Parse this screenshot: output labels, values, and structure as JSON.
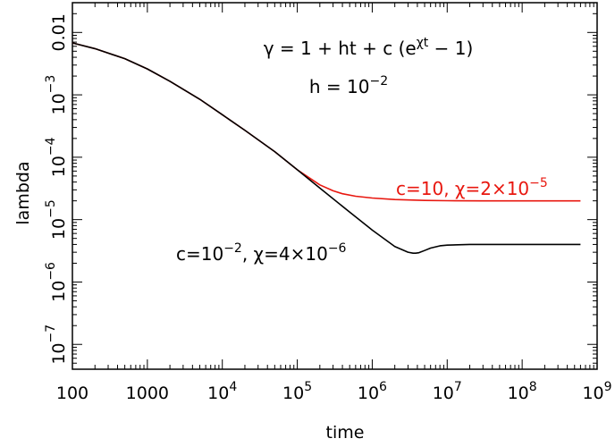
{
  "chart_data": {
    "type": "line",
    "xlabel": "time",
    "ylabel": "lambda",
    "x_scale": "log",
    "y_scale": "log",
    "xlim": [
      100,
      1000000000
    ],
    "ylim": [
      4e-08,
      0.03
    ],
    "x_ticks": [
      {
        "value": 100,
        "base": "100",
        "exp": ""
      },
      {
        "value": 1000,
        "base": "1000",
        "exp": ""
      },
      {
        "value": 10000,
        "base": "10",
        "exp": "4"
      },
      {
        "value": 100000,
        "base": "10",
        "exp": "5"
      },
      {
        "value": 1000000,
        "base": "10",
        "exp": "6"
      },
      {
        "value": 10000000,
        "base": "10",
        "exp": "7"
      },
      {
        "value": 100000000,
        "base": "10",
        "exp": "8"
      },
      {
        "value": 1000000000,
        "base": "10",
        "exp": "9"
      }
    ],
    "y_ticks": [
      {
        "value": 0.01,
        "base": "0.01",
        "exp": ""
      },
      {
        "value": 0.001,
        "base": "10",
        "exp": "−3"
      },
      {
        "value": 0.0001,
        "base": "10",
        "exp": "−4"
      },
      {
        "value": 1e-05,
        "base": "10",
        "exp": "−5"
      },
      {
        "value": 1e-06,
        "base": "10",
        "exp": "−6"
      },
      {
        "value": 1e-07,
        "base": "10",
        "exp": "−7"
      }
    ],
    "grid": false,
    "series": [
      {
        "color": "#000000",
        "x": [
          100,
          200,
          500,
          1000,
          2000,
          5000,
          10000,
          20000,
          50000,
          100000,
          200000,
          500000,
          1000000,
          2000000,
          3000000,
          3500000,
          3800000,
          4200000,
          5000000,
          6000000,
          8000000,
          10000000,
          20000000,
          50000000,
          100000000,
          200000000,
          600000000
        ],
        "y": [
          0.0068,
          0.0055,
          0.0038,
          0.0026,
          0.00165,
          0.00085,
          0.00048,
          0.00027,
          0.000123,
          6.3e-05,
          3.2e-05,
          1.32e-05,
          6.8e-06,
          3.7e-06,
          3e-06,
          2.9e-06,
          2.9e-06,
          2.95e-06,
          3.2e-06,
          3.5e-06,
          3.8e-06,
          3.9e-06,
          4e-06,
          4e-06,
          4e-06,
          4e-06,
          4e-06
        ]
      },
      {
        "color": "#e8170f",
        "x": [
          100,
          200,
          500,
          1000,
          2000,
          5000,
          10000,
          20000,
          50000,
          100000,
          200000,
          300000,
          400000,
          600000,
          1000000,
          2000000,
          5000000,
          10000000,
          30000000,
          100000000,
          600000000
        ],
        "y": [
          0.0068,
          0.0055,
          0.0038,
          0.0026,
          0.00165,
          0.00085,
          0.00048,
          0.00027,
          0.000123,
          6.3e-05,
          3.6e-05,
          2.9e-05,
          2.6e-05,
          2.37e-05,
          2.22e-05,
          2.1e-05,
          2.03e-05,
          2.01e-05,
          2e-05,
          2e-05,
          2e-05
        ]
      }
    ],
    "annotations": {
      "formula": {
        "p1": "γ = 1 + ht + c (e",
        "sup": "χt",
        "p2": " − 1)"
      },
      "h_label": {
        "p1": "h = 10",
        "sup": "−2"
      },
      "red_label": {
        "p1": "c=10,  χ=2×10",
        "sup": "−5",
        "color": "#e8170f"
      },
      "black_label": {
        "p1": "c=10",
        "sup1": "−2",
        "p2": ",  χ=4×10",
        "sup2": "−6",
        "color": "#000000"
      }
    }
  }
}
